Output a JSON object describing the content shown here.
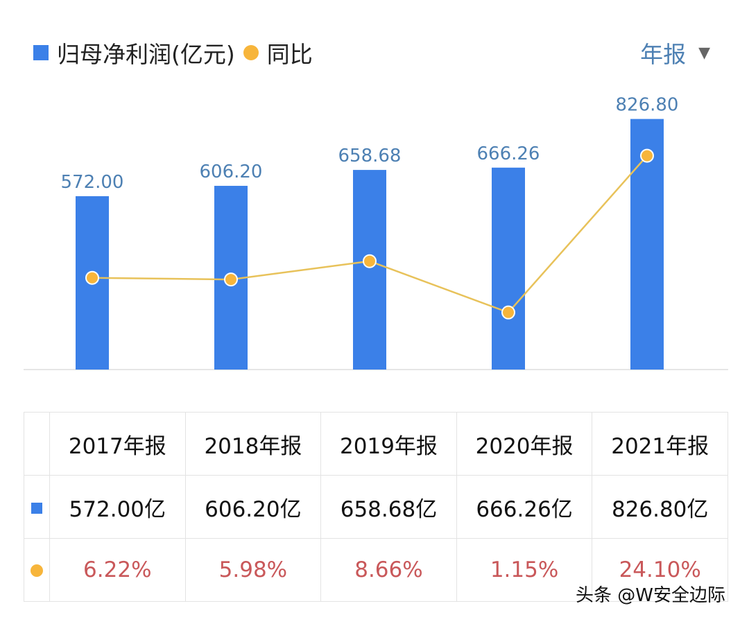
{
  "legend": {
    "series1": "归母净利润(亿元)",
    "series2": "同比"
  },
  "period_selector": {
    "label": "年报"
  },
  "colors": {
    "bar": "#3b80e8",
    "line": "#f7b53b",
    "pct_text": "#c9585a",
    "bar_label": "#4d80b3"
  },
  "chart_data": {
    "type": "bar+line",
    "categories": [
      "2017年报",
      "2018年报",
      "2019年报",
      "2020年报",
      "2021年报"
    ],
    "series": [
      {
        "name": "归母净利润(亿元)",
        "type": "bar",
        "values": [
          572.0,
          606.2,
          658.68,
          666.26,
          826.8
        ],
        "labels": [
          "572.00",
          "606.20",
          "658.68",
          "666.26",
          "826.80"
        ]
      },
      {
        "name": "同比",
        "type": "line",
        "values": [
          6.22,
          5.98,
          8.66,
          1.15,
          24.1
        ]
      }
    ]
  },
  "table": {
    "headers": [
      "2017年报",
      "2018年报",
      "2019年报",
      "2020年报",
      "2021年报"
    ],
    "values": [
      "572.00亿",
      "606.20亿",
      "658.68亿",
      "666.26亿",
      "826.80亿"
    ],
    "pcts": [
      "6.22%",
      "5.98%",
      "8.66%",
      "1.15%",
      "24.10%"
    ]
  },
  "watermark": "头条 @W安全边际"
}
